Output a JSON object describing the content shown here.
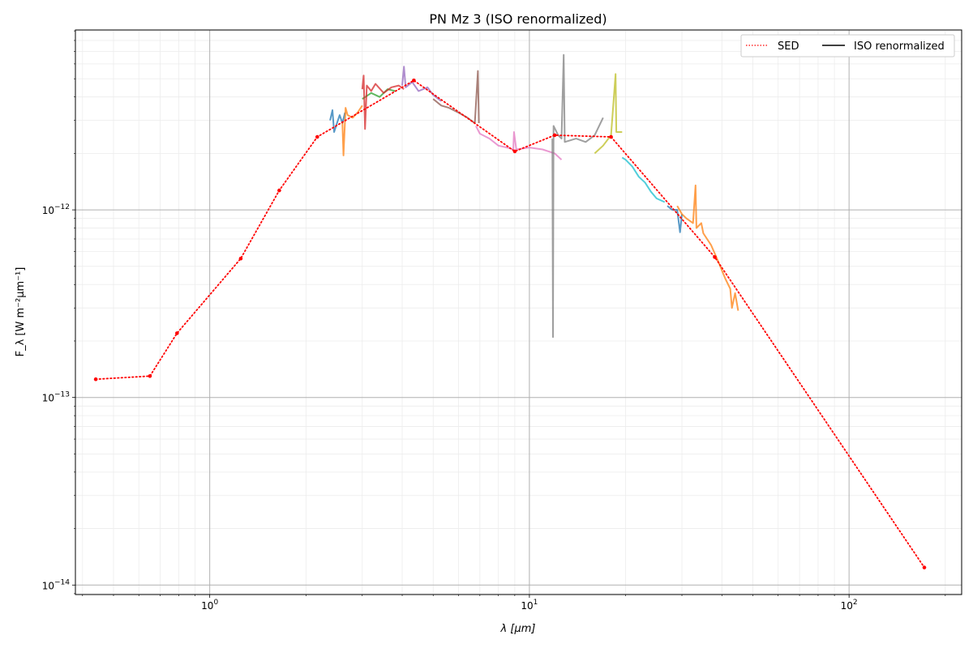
{
  "chart_data": {
    "type": "line",
    "title": "PN Mz 3 (ISO renormalized)",
    "xlabel": "λ [μm]",
    "ylabel": "F_λ [W m⁻²μm⁻¹]",
    "xscale": "log",
    "yscale": "log",
    "xlim": [
      0.38,
      225
    ],
    "ylim": [
      8.9e-15,
      9.1e-12
    ],
    "grid": true,
    "legend": {
      "placement": "top-right",
      "entries": [
        "SED",
        "ISO renormalized"
      ]
    },
    "x_ticks": [
      {
        "value": 1,
        "base": "10",
        "exp": "0"
      },
      {
        "value": 10,
        "base": "10",
        "exp": "1"
      },
      {
        "value": 100,
        "base": "10",
        "exp": "2"
      }
    ],
    "y_ticks": [
      {
        "value": 1e-14,
        "base": "10",
        "exp": "−14"
      },
      {
        "value": 1e-13,
        "base": "10",
        "exp": "−13"
      },
      {
        "value": 1e-12,
        "base": "10",
        "exp": "−12"
      }
    ],
    "series": [
      {
        "name": "SED",
        "color": "#ff0000",
        "style": "dotted",
        "points": [
          [
            0.44,
            1.25e-13
          ],
          [
            0.65,
            1.3e-13
          ],
          [
            0.79,
            2.2e-13
          ],
          [
            1.25,
            5.5e-13
          ],
          [
            1.65,
            1.27e-12
          ],
          [
            2.17,
            2.45e-12
          ],
          [
            4.35,
            4.9e-12
          ],
          [
            9.0,
            2.05e-12
          ],
          [
            12.0,
            2.5e-12
          ],
          [
            18.0,
            2.45e-12
          ],
          [
            38.0,
            5.6e-13
          ],
          [
            172,
            1.24e-14
          ]
        ]
      },
      {
        "name": "ISO renormalized",
        "color": "#000000",
        "style": "solid",
        "segments": [
          {
            "color": "#1f77b4",
            "points": [
              [
                2.38,
                3e-12
              ],
              [
                2.42,
                3.4e-12
              ],
              [
                2.45,
                2.6e-12
              ],
              [
                2.5,
                2.9e-12
              ],
              [
                2.55,
                3.2e-12
              ],
              [
                2.6,
                2.9e-12
              ],
              [
                2.65,
                3.3e-12
              ]
            ]
          },
          {
            "color": "#ff7f0e",
            "points": [
              [
                2.6,
                2.9e-12
              ],
              [
                2.62,
                1.95e-12
              ],
              [
                2.66,
                3.5e-12
              ],
              [
                2.7,
                3.2e-12
              ],
              [
                2.8,
                3.1e-12
              ],
              [
                2.9,
                3.3e-12
              ],
              [
                3.0,
                3.6e-12
              ]
            ]
          },
          {
            "color": "#2ca02c",
            "points": [
              [
                3.0,
                3.9e-12
              ],
              [
                3.2,
                4.2e-12
              ],
              [
                3.4,
                4e-12
              ],
              [
                3.6,
                4.4e-12
              ],
              [
                3.8,
                4.3e-12
              ]
            ]
          },
          {
            "color": "#d62728",
            "points": [
              [
                3.0,
                4.4e-12
              ],
              [
                3.03,
                5.2e-12
              ],
              [
                3.06,
                2.7e-12
              ],
              [
                3.1,
                4.6e-12
              ],
              [
                3.2,
                4.3e-12
              ],
              [
                3.3,
                4.7e-12
              ],
              [
                3.5,
                4.2e-12
              ],
              [
                3.7,
                4.5e-12
              ],
              [
                3.9,
                4.6e-12
              ],
              [
                4.05,
                4.4e-12
              ]
            ]
          },
          {
            "color": "#9467bd",
            "points": [
              [
                4.0,
                4.6e-12
              ],
              [
                4.05,
                5.8e-12
              ],
              [
                4.1,
                4.5e-12
              ],
              [
                4.3,
                4.8e-12
              ],
              [
                4.5,
                4.3e-12
              ],
              [
                4.8,
                4.5e-12
              ],
              [
                5.0,
                4.1e-12
              ],
              [
                5.3,
                3.8e-12
              ]
            ]
          },
          {
            "color": "#8c564b",
            "points": [
              [
                5.0,
                3.9e-12
              ],
              [
                5.3,
                3.6e-12
              ],
              [
                5.6,
                3.5e-12
              ],
              [
                6.0,
                3.3e-12
              ],
              [
                6.4,
                3.1e-12
              ],
              [
                6.75,
                2.9e-12
              ],
              [
                6.9,
                5.5e-12
              ],
              [
                6.95,
                2.9e-12
              ]
            ]
          },
          {
            "color": "#e377c2",
            "points": [
              [
                6.8,
                2.8e-12
              ],
              [
                7.0,
                2.55e-12
              ],
              [
                7.5,
                2.4e-12
              ],
              [
                8.0,
                2.2e-12
              ],
              [
                8.5,
                2.15e-12
              ],
              [
                8.9,
                2.1e-12
              ],
              [
                8.95,
                2.6e-12
              ],
              [
                9.1,
                2.1e-12
              ],
              [
                10.0,
                2.15e-12
              ],
              [
                11.0,
                2.1e-12
              ],
              [
                12.0,
                2e-12
              ],
              [
                12.6,
                1.85e-12
              ]
            ]
          },
          {
            "color": "#7f7f7f",
            "points": [
              [
                11.8,
                2.4e-12
              ],
              [
                11.85,
                2.1e-13
              ],
              [
                11.9,
                2.8e-12
              ],
              [
                12.3,
                2.5e-12
              ],
              [
                12.6,
                2.4e-12
              ],
              [
                12.8,
                6.7e-12
              ],
              [
                12.9,
                2.3e-12
              ],
              [
                14.0,
                2.4e-12
              ],
              [
                15.0,
                2.3e-12
              ],
              [
                16.0,
                2.5e-12
              ],
              [
                17.0,
                3.1e-12
              ]
            ]
          },
          {
            "color": "#bcbd22",
            "points": [
              [
                16.0,
                2e-12
              ],
              [
                17.0,
                2.2e-12
              ],
              [
                18.0,
                2.5e-12
              ],
              [
                18.6,
                5.3e-12
              ],
              [
                18.7,
                2.6e-12
              ],
              [
                19.5,
                2.6e-12
              ]
            ]
          },
          {
            "color": "#17becf",
            "points": [
              [
                19.5,
                1.9e-12
              ],
              [
                20.0,
                1.85e-12
              ],
              [
                21.0,
                1.7e-12
              ],
              [
                22.0,
                1.5e-12
              ],
              [
                23.0,
                1.4e-12
              ],
              [
                24.0,
                1.25e-12
              ],
              [
                25.0,
                1.15e-12
              ],
              [
                26.5,
                1.1e-12
              ]
            ]
          },
          {
            "color": "#1f77b4",
            "points": [
              [
                27.0,
                1.05e-12
              ],
              [
                28.0,
                1e-12
              ],
              [
                29.0,
                1e-12
              ],
              [
                29.6,
                7.6e-13
              ],
              [
                30.0,
                9.5e-13
              ]
            ]
          },
          {
            "color": "#ff7f0e",
            "points": [
              [
                29.0,
                1.05e-12
              ],
              [
                30.0,
                9.5e-13
              ],
              [
                31.0,
                9e-13
              ],
              [
                32.5,
                8.5e-13
              ],
              [
                33.1,
                1.35e-12
              ],
              [
                33.3,
                8e-13
              ],
              [
                34.5,
                8.5e-13
              ],
              [
                35.0,
                7.5e-13
              ],
              [
                37.0,
                6.5e-13
              ],
              [
                39.0,
                5.3e-13
              ],
              [
                41.0,
                4.3e-13
              ],
              [
                42.5,
                3.8e-13
              ],
              [
                43.0,
                3e-13
              ],
              [
                44.0,
                3.6e-13
              ],
              [
                45.0,
                2.9e-13
              ]
            ]
          }
        ]
      }
    ]
  }
}
